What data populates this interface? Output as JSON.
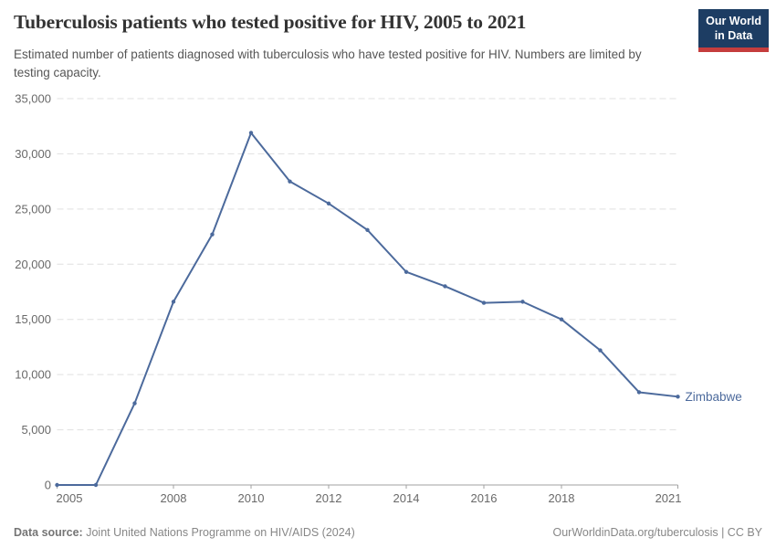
{
  "header": {
    "title": "Tuberculosis patients who tested positive for HIV, 2005 to 2021",
    "subtitle": "Estimated number of patients diagnosed with tuberculosis who have tested positive for HIV. Numbers are limited by testing capacity.",
    "logo": {
      "line1": "Our World",
      "line2": "in Data"
    }
  },
  "footer": {
    "data_source_label": "Data source:",
    "data_source_value": "Joint United Nations Programme on HIV/AIDS (2024)",
    "attribution": "OurWorldinData.org/tuberculosis | CC BY"
  },
  "colors": {
    "series_line": "#4c6a9c",
    "logo_background": "#1d3d63",
    "logo_underline": "#c53d3d",
    "gridline": "#e0e0e0",
    "axis_line": "#a1a1a1",
    "tick_text": "#696969"
  },
  "chart_data": {
    "type": "line",
    "title": "Tuberculosis patients who tested positive for HIV, 2005 to 2021",
    "x": [
      2005,
      2006,
      2007,
      2008,
      2009,
      2010,
      2011,
      2012,
      2013,
      2014,
      2015,
      2016,
      2017,
      2018,
      2019,
      2020,
      2021
    ],
    "series": [
      {
        "name": "Zimbabwe",
        "color": "#4c6a9c",
        "values": [
          0,
          0,
          7400,
          16600,
          22700,
          31900,
          27500,
          25500,
          23100,
          19300,
          18000,
          16500,
          16600,
          15000,
          12200,
          8400,
          8000
        ]
      }
    ],
    "xlabel": "",
    "ylabel": "",
    "ylim": [
      0,
      35000
    ],
    "yticks": [
      0,
      5000,
      10000,
      15000,
      20000,
      25000,
      30000,
      35000
    ],
    "xticks": [
      2005,
      2008,
      2010,
      2012,
      2014,
      2016,
      2018,
      2021
    ],
    "grid": "horizontal-dashed",
    "legend": "end-of-line-label"
  }
}
